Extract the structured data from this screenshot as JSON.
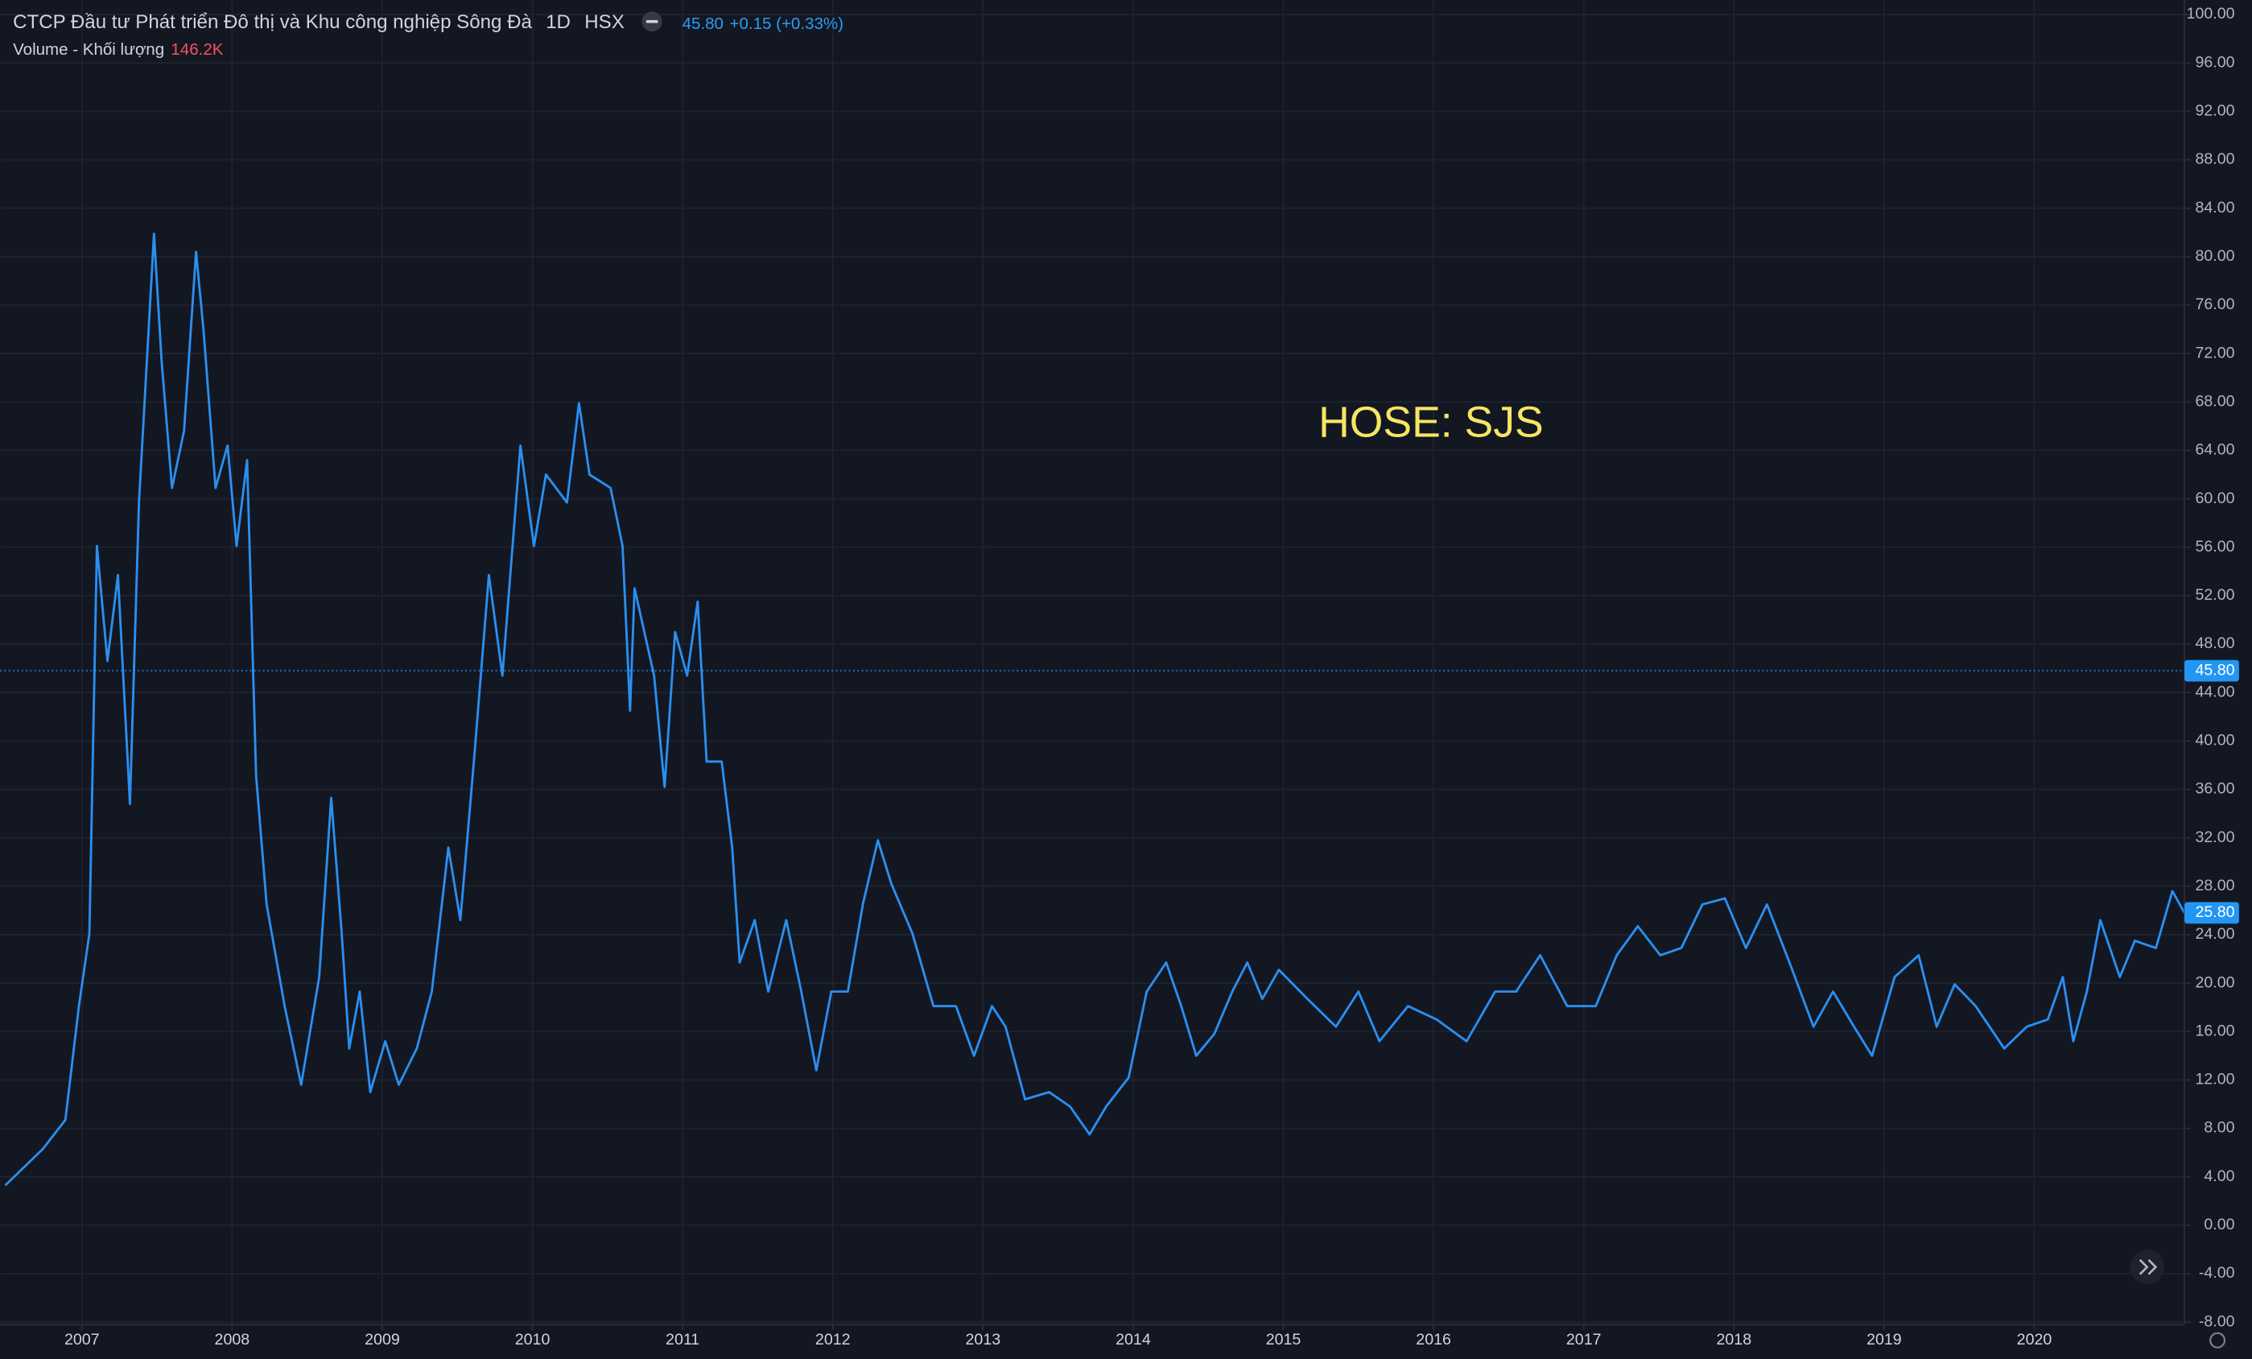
{
  "chart_data": {
    "type": "line",
    "title": "CTCP Đầu tư Phát triển Đô thị và Khu công nghiệp Sông Đà",
    "interval": "1D",
    "exchange": "HSX",
    "last_price": "45.80",
    "change": "+0.15 (+0.33%)",
    "volume_label": "Volume - Khối lượng",
    "volume_value": "146.2K",
    "annotation": "HOSE: SJS",
    "x": [
      2006.49,
      2006.74,
      2006.89,
      2006.98,
      2007.05,
      2007.1,
      2007.17,
      2007.24,
      2007.32,
      2007.38,
      2007.48,
      2007.53,
      2007.6,
      2007.68,
      2007.76,
      2007.81,
      2007.89,
      2007.97,
      2008.03,
      2008.1,
      2008.16,
      2008.23,
      2008.35,
      2008.46,
      2008.58,
      2008.66,
      2008.73,
      2008.78,
      2008.85,
      2008.92,
      2009.02,
      2009.11,
      2009.23,
      2009.33,
      2009.44,
      2009.52,
      2009.61,
      2009.71,
      2009.8,
      2009.92,
      2010.01,
      2010.09,
      2010.23,
      2010.31,
      2010.38,
      2010.52,
      2010.6,
      2010.65,
      2010.68,
      2010.81,
      2010.88,
      2010.95,
      2011.03,
      2011.1,
      2011.16,
      2011.26,
      2011.33,
      2011.38,
      2011.48,
      2011.57,
      2011.69,
      2011.79,
      2011.89,
      2011.99,
      2012.1,
      2012.2,
      2012.3,
      2012.39,
      2012.53,
      2012.67,
      2012.82,
      2012.94,
      2013.06,
      2013.15,
      2013.28,
      2013.44,
      2013.58,
      2013.71,
      2013.82,
      2013.97,
      2014.09,
      2014.22,
      2014.32,
      2014.42,
      2014.54,
      2014.66,
      2014.76,
      2014.86,
      2014.97,
      2015.16,
      2015.35,
      2015.5,
      2015.64,
      2015.83,
      2016.02,
      2016.22,
      2016.41,
      2016.55,
      2016.71,
      2016.89,
      2017.08,
      2017.22,
      2017.36,
      2017.51,
      2017.65,
      2017.79,
      2017.94,
      2018.08,
      2018.22,
      2018.37,
      2018.53,
      2018.66,
      2018.8,
      2018.92,
      2019.07,
      2019.23,
      2019.35,
      2019.47,
      2019.61,
      2019.8,
      2019.95,
      2020.09,
      2020.19,
      2020.26,
      2020.35,
      2020.44,
      2020.57,
      2020.67,
      2020.81,
      2020.92,
      2021.0
    ],
    "series": [
      {
        "color": "#2a8ff0",
        "values": [
          3.3,
          6.3,
          8.7,
          18.1,
          24.1,
          56.1,
          46.6,
          53.7,
          34.8,
          59.7,
          81.9,
          71.5,
          60.9,
          65.6,
          80.4,
          73.9,
          60.9,
          64.4,
          56.1,
          63.2,
          37.1,
          26.5,
          18.1,
          11.6,
          20.5,
          35.3,
          24.1,
          14.6,
          19.3,
          11.0,
          15.2,
          11.6,
          14.6,
          19.3,
          31.2,
          25.2,
          38.3,
          53.7,
          45.4,
          64.4,
          56.1,
          62.0,
          59.7,
          67.9,
          62.0,
          60.9,
          56.1,
          42.5,
          52.6,
          45.4,
          36.2,
          49.0,
          45.4,
          51.5,
          38.3,
          38.3,
          31.2,
          21.7,
          25.2,
          19.3,
          25.2,
          19.3,
          12.8,
          19.3,
          19.3,
          26.5,
          31.8,
          28.2,
          24.1,
          18.1,
          18.1,
          14.0,
          18.1,
          16.4,
          10.4,
          11.0,
          9.8,
          7.5,
          9.8,
          12.2,
          19.3,
          21.7,
          18.1,
          14.0,
          15.8,
          19.3,
          21.7,
          18.7,
          21.1,
          18.7,
          16.4,
          19.3,
          15.2,
          18.1,
          17.0,
          15.2,
          19.3,
          19.3,
          22.3,
          18.1,
          18.1,
          22.3,
          24.7,
          22.3,
          22.9,
          26.5,
          27.0,
          22.9,
          26.5,
          21.7,
          16.4,
          19.3,
          16.4,
          14.0,
          20.5,
          22.3,
          16.4,
          19.9,
          18.1,
          14.6,
          16.4,
          17.0,
          20.5,
          15.2,
          19.3,
          25.2,
          20.5,
          23.5,
          22.9,
          27.6,
          25.8
        ]
      }
    ],
    "xlim": [
      2006.455,
      2021.0
    ],
    "xticks": [
      2007,
      2008,
      2009,
      2010,
      2011,
      2012,
      2013,
      2014,
      2015,
      2016,
      2017,
      2018,
      2019,
      2020
    ],
    "ylim": [
      -8.2,
      101.2
    ],
    "yticks": [
      {
        "value": 100,
        "label": "100.00"
      },
      {
        "value": 96,
        "label": "96.00"
      },
      {
        "value": 92,
        "label": "92.00"
      },
      {
        "value": 88,
        "label": "88.00"
      },
      {
        "value": 84,
        "label": "84.00"
      },
      {
        "value": 80,
        "label": "80.00"
      },
      {
        "value": 76,
        "label": "76.00"
      },
      {
        "value": 72,
        "label": "72.00"
      },
      {
        "value": 68,
        "label": "68.00"
      },
      {
        "value": 64,
        "label": "64.00"
      },
      {
        "value": 60,
        "label": "60.00"
      },
      {
        "value": 56,
        "label": "56.00"
      },
      {
        "value": 52,
        "label": "52.00"
      },
      {
        "value": 48,
        "label": "48.00"
      },
      {
        "value": 44,
        "label": "44.00"
      },
      {
        "value": 40,
        "label": "40.00"
      },
      {
        "value": 36,
        "label": "36.00"
      },
      {
        "value": 32,
        "label": "32.00"
      },
      {
        "value": 28,
        "label": "28.00"
      },
      {
        "value": 24,
        "label": "24.00"
      },
      {
        "value": 20,
        "label": "20.00"
      },
      {
        "value": 16,
        "label": "16.00"
      },
      {
        "value": 12,
        "label": "12.00"
      },
      {
        "value": 8,
        "label": "8.00"
      },
      {
        "value": 4,
        "label": "4.00"
      },
      {
        "value": 0,
        "label": "0.00"
      },
      {
        "value": -4,
        "label": "-4.00"
      },
      {
        "value": -8,
        "label": "-8.00"
      }
    ],
    "price_markers": [
      {
        "value": 45.8,
        "label": "45.80"
      },
      {
        "value": 25.8,
        "label": "25.80"
      }
    ],
    "grid": true
  }
}
